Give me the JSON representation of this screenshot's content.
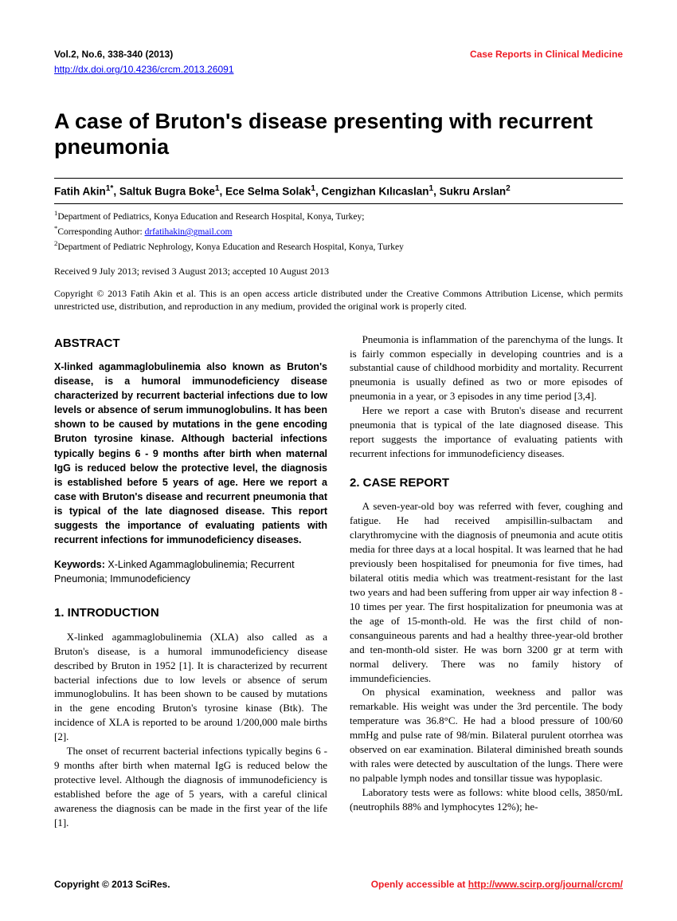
{
  "header": {
    "citation": "Vol.2, No.6, 338-340 (2013)",
    "journal": "Case Reports in Clinical Medicine",
    "doi": "http://dx.doi.org/10.4236/crcm.2013.26091"
  },
  "title": "A case of Bruton's disease presenting with recurrent pneumonia",
  "authors_html": "Fatih Akin<sup>1*</sup>, Saltuk Bugra Boke<sup>1</sup>, Ece Selma Solak<sup>1</sup>, Cengizhan Kılıcaslan<sup>1</sup>, Sukru Arslan<sup>2</sup>",
  "affiliations": {
    "a1": "Department of Pediatrics, Konya Education and Research Hospital, Konya, Turkey;",
    "a2_label": "Corresponding Author:",
    "a2_email": "drfatihakin@gmail.com",
    "a3": "Department of Pediatric Nephrology, Konya Education and Research Hospital, Konya, Turkey"
  },
  "dates": "Received 9 July 2013; revised 3 August 2013; accepted 10 August 2013",
  "copyright": "Copyright © 2013 Fatih Akin et al. This is an open access article distributed under the Creative Commons Attribution License, which permits unrestricted use, distribution, and reproduction in any medium, provided the original work is properly cited.",
  "sections": {
    "abstract_heading": "ABSTRACT",
    "abstract_text": "X-linked agammaglobulinemia also known as Bruton's disease, is a humoral immunodeficiency disease characterized by recurrent bacterial infections due to low levels or absence of serum immunoglobulins. It has been shown to be caused by mutations in the gene encoding Bruton tyrosine kinase. Although bacterial infections typically begins 6 - 9 months after birth when maternal IgG is reduced below the protective level, the diagnosis is established before 5 years of age. Here we report a case with Bruton's disease and recurrent pneumonia that is typical of the late diagnosed disease. This report suggests the importance of evaluating patients with recurrent infections for immunodeficiency diseases.",
    "keywords_label": "Keywords:",
    "keywords_text": "X-Linked Agammaglobulinemia; Recurrent Pneumonia; Immunodeficiency",
    "intro_heading": "1. INTRODUCTION",
    "intro_p1": "X-linked agammaglobulinemia (XLA) also called as a Bruton's disease, is a humoral immunodeficiency disease described by Bruton in 1952 [1]. It is characterized by recurrent bacterial infections due to low levels or absence of serum immunoglobulins. It has been shown to be caused by mutations in the gene encoding Bruton's tyrosine kinase (Btk). The incidence of XLA is reported to be around 1/200,000 male births [2].",
    "intro_p2": "The onset of recurrent bacterial infections typically begins 6 - 9 months after birth when maternal IgG is reduced below the protective level. Although the diagnosis of immunodeficiency is established before the age of 5 years, with a careful clinical awareness the diagnosis can be made in the first year of the life [1].",
    "intro_p3": "Pneumonia is inflammation of the parenchyma of the lungs. It is fairly common especially in developing countries and is a substantial cause of childhood morbidity and mortality. Recurrent pneumonia is usually defined as two or more episodes of pneumonia in a year, or 3 episodes in any time period [3,4].",
    "intro_p4": "Here we report a case with Bruton's disease and recurrent pneumonia that is typical of the late diagnosed disease. This report suggests the importance of evaluating patients with recurrent infections for immunodeficiency diseases.",
    "case_heading": "2. CASE REPORT",
    "case_p1": "A seven-year-old boy was referred with fever, coughing and fatigue. He had received ampisillin-sulbactam and clarythromycine with the diagnosis of pneumonia and acute otitis media for three days at a local hospital. It was learned that he had previously been hospitalised for pneumonia for five times, had bilateral otitis media which was treatment-resistant for the last two years and had been suffering from upper air way infection 8 - 10 times per year. The first hospitalization for pneumonia was at the age of 15-month-old. He was the first child of non-consanguineous parents and had a healthy three-year-old brother and ten-month-old sister. He was born 3200 gr at term with normal delivery. There was no family history of immundeficiencies.",
    "case_p2": "On physical examination, weekness and pallor was remarkable. His weight was under the 3rd percentile. The body temperature was 36.8°C. He had a blood pressure of 100/60 mmHg and pulse rate of 98/min. Bilateral purulent otorrhea was observed on ear examination. Bilateral diminished breath sounds with rales were detected by auscultation of the lungs. There were no palpable lymph nodes and tonsillar tissue was hypoplasic.",
    "case_p3": "Laboratory tests were as follows: white blood cells, 3850/mL (neutrophils 88% and lymphocytes 12%); he-"
  },
  "footer": {
    "left": "Copyright © 2013 SciRes.",
    "right_text": "Openly accessible at ",
    "right_link": "http://www.scirp.org/journal/crcm/"
  }
}
